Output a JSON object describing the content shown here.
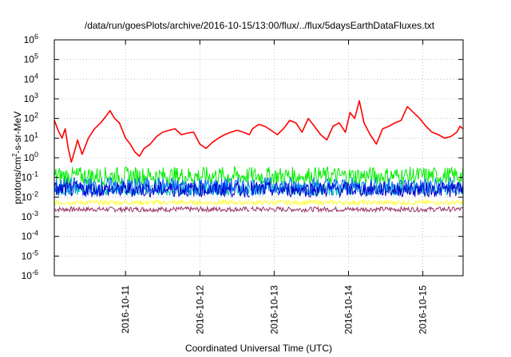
{
  "chart_data": {
    "type": "line",
    "title": "/data/run/goesPlots/archive/2016-10-15/13:00/flux/../flux/5daysEarthDataFluxes.txt",
    "xlabel": "Coordinated Universal Time (UTC)",
    "ylabel": {
      "pre": "protons/cm",
      "sup": "2",
      "post": "-s-sr-MeV"
    },
    "y_scale": "log",
    "ylim": [
      1e-06,
      1000000.0
    ],
    "y_ticks": [
      {
        "value": 1e-06,
        "exp": "-6"
      },
      {
        "value": 1e-05,
        "exp": "-5"
      },
      {
        "value": 0.0001,
        "exp": "-4"
      },
      {
        "value": 0.001,
        "exp": "-3"
      },
      {
        "value": 0.01,
        "exp": "-2"
      },
      {
        "value": 0.1,
        "exp": "-1"
      },
      {
        "value": 1,
        "exp": "0"
      },
      {
        "value": 10,
        "exp": "1"
      },
      {
        "value": 100,
        "exp": "2"
      },
      {
        "value": 1000,
        "exp": "3"
      },
      {
        "value": 10000.0,
        "exp": "4"
      },
      {
        "value": 100000.0,
        "exp": "5"
      },
      {
        "value": 1000000.0,
        "exp": "6"
      }
    ],
    "tick_base": "10",
    "x_start": "2016-10-10T01:00",
    "x_end": "2016-10-15T13:00",
    "x_ticks": [
      {
        "value": "2016-10-11T00:00",
        "label": "2016-10-11"
      },
      {
        "value": "2016-10-12T00:00",
        "label": "2016-10-12"
      },
      {
        "value": "2016-10-13T00:00",
        "label": "2016-10-13"
      },
      {
        "value": "2016-10-14T00:00",
        "label": "2016-10-14"
      },
      {
        "value": "2016-10-15T00:00",
        "label": "2016-10-15"
      }
    ],
    "grid": true,
    "data_gap": [
      "2016-10-12T16:00",
      "2016-10-12T16:30"
    ],
    "series": [
      {
        "color": "#ff0000",
        "x": [
          "2016-10-10T01:00",
          "2016-10-10T02:30",
          "2016-10-10T03:30",
          "2016-10-10T04:30",
          "2016-10-10T05:30",
          "2016-10-10T06:30",
          "2016-10-10T07:30",
          "2016-10-10T08:30",
          "2016-10-10T10:00",
          "2016-10-10T12:00",
          "2016-10-10T14:00",
          "2016-10-10T16:00",
          "2016-10-10T17:30",
          "2016-10-10T19:00",
          "2016-10-10T20:30",
          "2016-10-10T22:00",
          "2016-10-11T00:00",
          "2016-10-11T01:30",
          "2016-10-11T03:00",
          "2016-10-11T04:30",
          "2016-10-11T06:00",
          "2016-10-11T08:00",
          "2016-10-11T10:00",
          "2016-10-11T12:00",
          "2016-10-11T14:00",
          "2016-10-11T16:00",
          "2016-10-11T18:00",
          "2016-10-11T20:00",
          "2016-10-11T22:00",
          "2016-10-12T00:00",
          "2016-10-12T02:00",
          "2016-10-12T04:00",
          "2016-10-12T06:00",
          "2016-10-12T08:00",
          "2016-10-12T10:00",
          "2016-10-12T12:00",
          "2016-10-12T14:00",
          "2016-10-12T16:00",
          "2016-10-12T17:00",
          "2016-10-12T19:00",
          "2016-10-12T21:00",
          "2016-10-12T23:00",
          "2016-10-13T01:00",
          "2016-10-13T03:00",
          "2016-10-13T05:00",
          "2016-10-13T07:00",
          "2016-10-13T09:00",
          "2016-10-13T11:00",
          "2016-10-13T13:00",
          "2016-10-13T15:00",
          "2016-10-13T17:00",
          "2016-10-13T19:00",
          "2016-10-13T21:00",
          "2016-10-13T23:00",
          "2016-10-14T00:30",
          "2016-10-14T02:00",
          "2016-10-14T03:30",
          "2016-10-14T05:00",
          "2016-10-14T07:00",
          "2016-10-14T09:00",
          "2016-10-14T11:00",
          "2016-10-14T13:00",
          "2016-10-14T15:00",
          "2016-10-14T17:00",
          "2016-10-14T19:00",
          "2016-10-14T21:00",
          "2016-10-14T23:00",
          "2016-10-15T01:00",
          "2016-10-15T03:00",
          "2016-10-15T05:00",
          "2016-10-15T07:00",
          "2016-10-15T09:00",
          "2016-10-15T11:00",
          "2016-10-15T12:00",
          "2016-10-15T13:00"
        ],
        "values": [
          80,
          20,
          10,
          30,
          3,
          0.6,
          2,
          8,
          1.5,
          10,
          30,
          60,
          120,
          250,
          100,
          60,
          10,
          5,
          2,
          1.2,
          3,
          5,
          12,
          20,
          25,
          30,
          15,
          18,
          20,
          5,
          3,
          6,
          10,
          15,
          20,
          25,
          20,
          15,
          30,
          50,
          40,
          25,
          15,
          30,
          80,
          60,
          20,
          100,
          40,
          15,
          8,
          40,
          60,
          20,
          200,
          100,
          800,
          60,
          15,
          5,
          30,
          40,
          60,
          80,
          400,
          200,
          100,
          40,
          20,
          15,
          10,
          12,
          20,
          40,
          30
        ]
      },
      {
        "color": "#00ee00",
        "band": [
          0.04,
          0.35
        ]
      },
      {
        "color": "#0066ff",
        "band": [
          0.012,
          0.1
        ]
      },
      {
        "color": "#00bbbb",
        "band": [
          0.012,
          0.05
        ]
      },
      {
        "color": "#0000cc",
        "band": [
          0.01,
          0.06
        ]
      },
      {
        "color": "#ffff33",
        "band": [
          0.004,
          0.007
        ]
      },
      {
        "color": "#993366",
        "band": [
          0.0018,
          0.0032
        ]
      }
    ]
  }
}
